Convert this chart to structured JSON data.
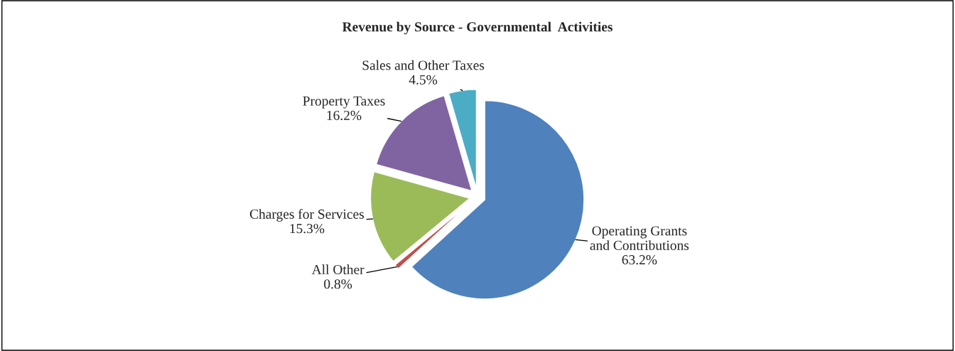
{
  "chart_data": {
    "type": "pie",
    "title": "Revenue by Source - Governmental  Activities",
    "categories": [
      "Operating Grants and Contributions",
      "All Other",
      "Charges for Services",
      "Property Taxes",
      "Sales and Other Taxes"
    ],
    "values": [
      63.2,
      0.8,
      15.3,
      16.2,
      4.5
    ],
    "value_labels": [
      "63.2%",
      "0.8%",
      "15.3%",
      "16.2%",
      "4.5%"
    ],
    "colors": [
      "#4f81bd",
      "#c0504d",
      "#9bbb59",
      "#8064a2",
      "#4bacc6"
    ],
    "legend": false
  }
}
